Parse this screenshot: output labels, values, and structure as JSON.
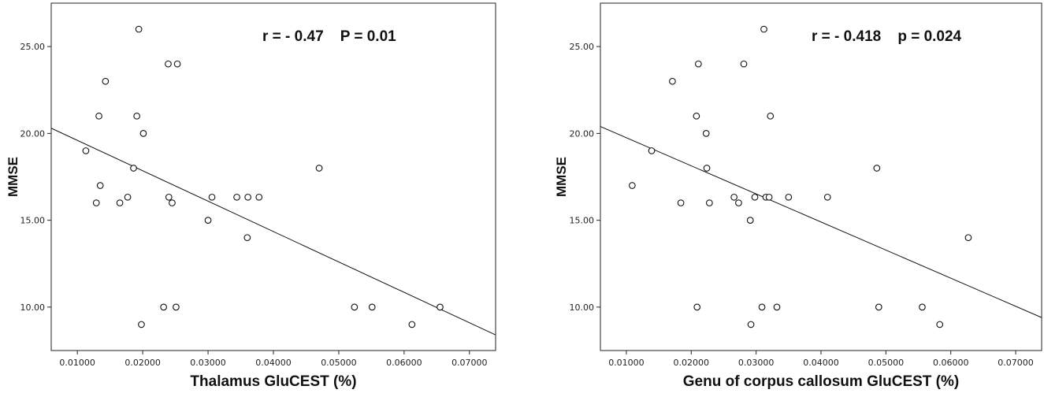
{
  "chart_data": [
    {
      "type": "scatter",
      "xlabel": "Thalamus GluCEST (%)",
      "ylabel": "MMSE",
      "annotation": "r = - 0.47    P = 0.01",
      "xlim": [
        0.006,
        0.074
      ],
      "ylim": [
        7.5,
        27.5
      ],
      "xticks": [
        "0.01000",
        "0.02000",
        "0.03000",
        "0.04000",
        "0.05000",
        "0.06000",
        "0.07000"
      ],
      "yticks": [
        "10.00",
        "15.00",
        "20.00",
        "25.00"
      ],
      "grid": false,
      "fit_line": {
        "x": [
          0.006,
          0.074
        ],
        "y": [
          20.3,
          8.4
        ]
      },
      "points": [
        {
          "x": 0.0113,
          "y": 19
        },
        {
          "x": 0.0129,
          "y": 16
        },
        {
          "x": 0.0133,
          "y": 21
        },
        {
          "x": 0.0135,
          "y": 17
        },
        {
          "x": 0.0143,
          "y": 23
        },
        {
          "x": 0.0165,
          "y": 16
        },
        {
          "x": 0.0177,
          "y": 16.33
        },
        {
          "x": 0.0186,
          "y": 18
        },
        {
          "x": 0.0191,
          "y": 21
        },
        {
          "x": 0.0194,
          "y": 26
        },
        {
          "x": 0.0198,
          "y": 9
        },
        {
          "x": 0.0201,
          "y": 20
        },
        {
          "x": 0.0232,
          "y": 10
        },
        {
          "x": 0.0239,
          "y": 24
        },
        {
          "x": 0.024,
          "y": 16.33
        },
        {
          "x": 0.0245,
          "y": 16
        },
        {
          "x": 0.0251,
          "y": 10
        },
        {
          "x": 0.0253,
          "y": 24
        },
        {
          "x": 0.03,
          "y": 15
        },
        {
          "x": 0.0306,
          "y": 16.33
        },
        {
          "x": 0.0344,
          "y": 16.33
        },
        {
          "x": 0.036,
          "y": 14
        },
        {
          "x": 0.0361,
          "y": 16.33
        },
        {
          "x": 0.0378,
          "y": 16.33
        },
        {
          "x": 0.047,
          "y": 18
        },
        {
          "x": 0.0524,
          "y": 10
        },
        {
          "x": 0.0551,
          "y": 10
        },
        {
          "x": 0.0612,
          "y": 9
        },
        {
          "x": 0.0655,
          "y": 10
        }
      ]
    },
    {
      "type": "scatter",
      "xlabel": "Genu of corpus callosum GluCEST (%)",
      "ylabel": "MMSE",
      "annotation": "r = - 0.418    p = 0.024",
      "xlim": [
        0.006,
        0.074
      ],
      "ylim": [
        7.5,
        27.5
      ],
      "xticks": [
        "0.01000",
        "0.02000",
        "0.03000",
        "0.04000",
        "0.05000",
        "0.06000",
        "0.07000"
      ],
      "yticks": [
        "10.00",
        "15.00",
        "20.00",
        "25.00"
      ],
      "grid": false,
      "fit_line": {
        "x": [
          0.006,
          0.074
        ],
        "y": [
          20.4,
          9.4
        ]
      },
      "points": [
        {
          "x": 0.0109,
          "y": 17
        },
        {
          "x": 0.0139,
          "y": 19
        },
        {
          "x": 0.0171,
          "y": 23
        },
        {
          "x": 0.0184,
          "y": 16
        },
        {
          "x": 0.0208,
          "y": 21
        },
        {
          "x": 0.0209,
          "y": 10
        },
        {
          "x": 0.0211,
          "y": 24
        },
        {
          "x": 0.0223,
          "y": 20
        },
        {
          "x": 0.0224,
          "y": 18
        },
        {
          "x": 0.0228,
          "y": 16
        },
        {
          "x": 0.0266,
          "y": 16.33
        },
        {
          "x": 0.0273,
          "y": 16
        },
        {
          "x": 0.0281,
          "y": 24
        },
        {
          "x": 0.0291,
          "y": 15
        },
        {
          "x": 0.0292,
          "y": 9
        },
        {
          "x": 0.0298,
          "y": 16.33
        },
        {
          "x": 0.0309,
          "y": 10
        },
        {
          "x": 0.0312,
          "y": 26
        },
        {
          "x": 0.0315,
          "y": 16.33
        },
        {
          "x": 0.032,
          "y": 16.33
        },
        {
          "x": 0.0322,
          "y": 21
        },
        {
          "x": 0.0332,
          "y": 10
        },
        {
          "x": 0.035,
          "y": 16.33
        },
        {
          "x": 0.041,
          "y": 16.33
        },
        {
          "x": 0.0486,
          "y": 18
        },
        {
          "x": 0.0489,
          "y": 10
        },
        {
          "x": 0.0556,
          "y": 10
        },
        {
          "x": 0.0583,
          "y": 9
        },
        {
          "x": 0.0627,
          "y": 14
        }
      ]
    }
  ]
}
